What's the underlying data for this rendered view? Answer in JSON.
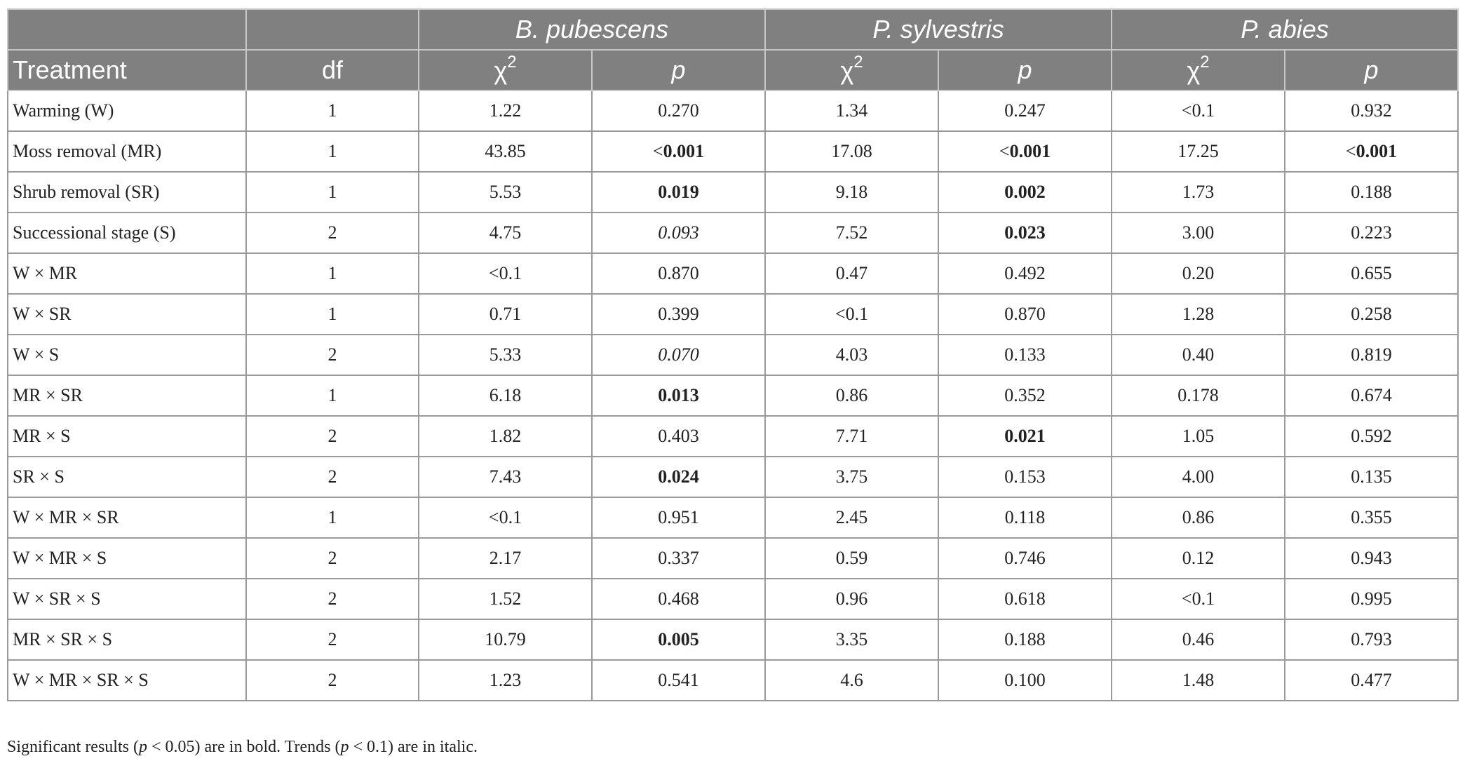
{
  "header": {
    "species": [
      "B. pubescens",
      "P. sylvestris",
      "P. abies"
    ],
    "treatment_label": "Treatment",
    "df_label": "df",
    "chi_label": "χ",
    "chi_sup": "2",
    "p_label": "p"
  },
  "rows": [
    {
      "treatment": "Warming (W)",
      "df": "1",
      "cells": [
        {
          "v": "1.22",
          "s": ""
        },
        {
          "v": "0.270",
          "s": ""
        },
        {
          "v": "1.34",
          "s": ""
        },
        {
          "v": "0.247",
          "s": ""
        },
        {
          "v": "<0.1",
          "s": ""
        },
        {
          "v": "0.932",
          "s": ""
        }
      ]
    },
    {
      "treatment": "Moss removal (MR)",
      "df": "1",
      "cells": [
        {
          "v": "43.85",
          "s": ""
        },
        {
          "v": "<0.001",
          "s": "sig-lt"
        },
        {
          "v": "17.08",
          "s": ""
        },
        {
          "v": "<0.001",
          "s": "sig-lt"
        },
        {
          "v": "17.25",
          "s": ""
        },
        {
          "v": "<0.001",
          "s": "sig-lt"
        }
      ]
    },
    {
      "treatment": "Shrub removal (SR)",
      "df": "1",
      "cells": [
        {
          "v": "5.53",
          "s": ""
        },
        {
          "v": "0.019",
          "s": "sig"
        },
        {
          "v": "9.18",
          "s": ""
        },
        {
          "v": "0.002",
          "s": "sig"
        },
        {
          "v": "1.73",
          "s": ""
        },
        {
          "v": "0.188",
          "s": ""
        }
      ]
    },
    {
      "treatment": "Successional stage (S)",
      "df": "2",
      "cells": [
        {
          "v": "4.75",
          "s": ""
        },
        {
          "v": "0.093",
          "s": "trend"
        },
        {
          "v": "7.52",
          "s": ""
        },
        {
          "v": "0.023",
          "s": "sig"
        },
        {
          "v": "3.00",
          "s": ""
        },
        {
          "v": "0.223",
          "s": ""
        }
      ]
    },
    {
      "treatment": "W × MR",
      "df": "1",
      "cells": [
        {
          "v": "<0.1",
          "s": ""
        },
        {
          "v": "0.870",
          "s": ""
        },
        {
          "v": "0.47",
          "s": ""
        },
        {
          "v": "0.492",
          "s": ""
        },
        {
          "v": "0.20",
          "s": ""
        },
        {
          "v": "0.655",
          "s": ""
        }
      ]
    },
    {
      "treatment": "W × SR",
      "df": "1",
      "cells": [
        {
          "v": "0.71",
          "s": ""
        },
        {
          "v": "0.399",
          "s": ""
        },
        {
          "v": "<0.1",
          "s": ""
        },
        {
          "v": "0.870",
          "s": ""
        },
        {
          "v": "1.28",
          "s": ""
        },
        {
          "v": "0.258",
          "s": ""
        }
      ]
    },
    {
      "treatment": "W × S",
      "df": "2",
      "cells": [
        {
          "v": "5.33",
          "s": ""
        },
        {
          "v": "0.070",
          "s": "trend"
        },
        {
          "v": "4.03",
          "s": ""
        },
        {
          "v": "0.133",
          "s": ""
        },
        {
          "v": "0.40",
          "s": ""
        },
        {
          "v": "0.819",
          "s": ""
        }
      ]
    },
    {
      "treatment": "MR × SR",
      "df": "1",
      "cells": [
        {
          "v": "6.18",
          "s": ""
        },
        {
          "v": "0.013",
          "s": "sig"
        },
        {
          "v": "0.86",
          "s": ""
        },
        {
          "v": "0.352",
          "s": ""
        },
        {
          "v": "0.178",
          "s": ""
        },
        {
          "v": "0.674",
          "s": ""
        }
      ]
    },
    {
      "treatment": "MR × S",
      "df": "2",
      "cells": [
        {
          "v": "1.82",
          "s": ""
        },
        {
          "v": "0.403",
          "s": ""
        },
        {
          "v": "7.71",
          "s": ""
        },
        {
          "v": "0.021",
          "s": "sig"
        },
        {
          "v": "1.05",
          "s": ""
        },
        {
          "v": "0.592",
          "s": ""
        }
      ]
    },
    {
      "treatment": "SR × S",
      "df": "2",
      "cells": [
        {
          "v": "7.43",
          "s": ""
        },
        {
          "v": "0.024",
          "s": "sig"
        },
        {
          "v": "3.75",
          "s": ""
        },
        {
          "v": "0.153",
          "s": ""
        },
        {
          "v": "4.00",
          "s": ""
        },
        {
          "v": "0.135",
          "s": ""
        }
      ]
    },
    {
      "treatment": "W × MR × SR",
      "df": "1",
      "cells": [
        {
          "v": "<0.1",
          "s": ""
        },
        {
          "v": "0.951",
          "s": ""
        },
        {
          "v": "2.45",
          "s": ""
        },
        {
          "v": "0.118",
          "s": ""
        },
        {
          "v": "0.86",
          "s": ""
        },
        {
          "v": "0.355",
          "s": ""
        }
      ]
    },
    {
      "treatment": "W × MR × S",
      "df": "2",
      "cells": [
        {
          "v": "2.17",
          "s": ""
        },
        {
          "v": "0.337",
          "s": ""
        },
        {
          "v": "0.59",
          "s": ""
        },
        {
          "v": "0.746",
          "s": ""
        },
        {
          "v": "0.12",
          "s": ""
        },
        {
          "v": "0.943",
          "s": ""
        }
      ]
    },
    {
      "treatment": "W × SR × S",
      "df": "2",
      "cells": [
        {
          "v": "1.52",
          "s": ""
        },
        {
          "v": "0.468",
          "s": ""
        },
        {
          "v": "0.96",
          "s": ""
        },
        {
          "v": "0.618",
          "s": ""
        },
        {
          "v": "<0.1",
          "s": ""
        },
        {
          "v": "0.995",
          "s": ""
        }
      ]
    },
    {
      "treatment": "MR × SR × S",
      "df": "2",
      "cells": [
        {
          "v": "10.79",
          "s": ""
        },
        {
          "v": "0.005",
          "s": "sig"
        },
        {
          "v": "3.35",
          "s": ""
        },
        {
          "v": "0.188",
          "s": ""
        },
        {
          "v": "0.46",
          "s": ""
        },
        {
          "v": "0.793",
          "s": ""
        }
      ]
    },
    {
      "treatment": "W × MR × SR × S",
      "df": "2",
      "cells": [
        {
          "v": "1.23",
          "s": ""
        },
        {
          "v": "0.541",
          "s": ""
        },
        {
          "v": "4.6",
          "s": ""
        },
        {
          "v": "0.100",
          "s": ""
        },
        {
          "v": "1.48",
          "s": ""
        },
        {
          "v": "0.477",
          "s": ""
        }
      ]
    }
  ],
  "footnote": {
    "part1": "Significant results (",
    "p1": "p",
    "part2": " < 0.05) are in bold. Trends (",
    "p2": "p",
    "part3": " < 0.1) are in italic."
  }
}
